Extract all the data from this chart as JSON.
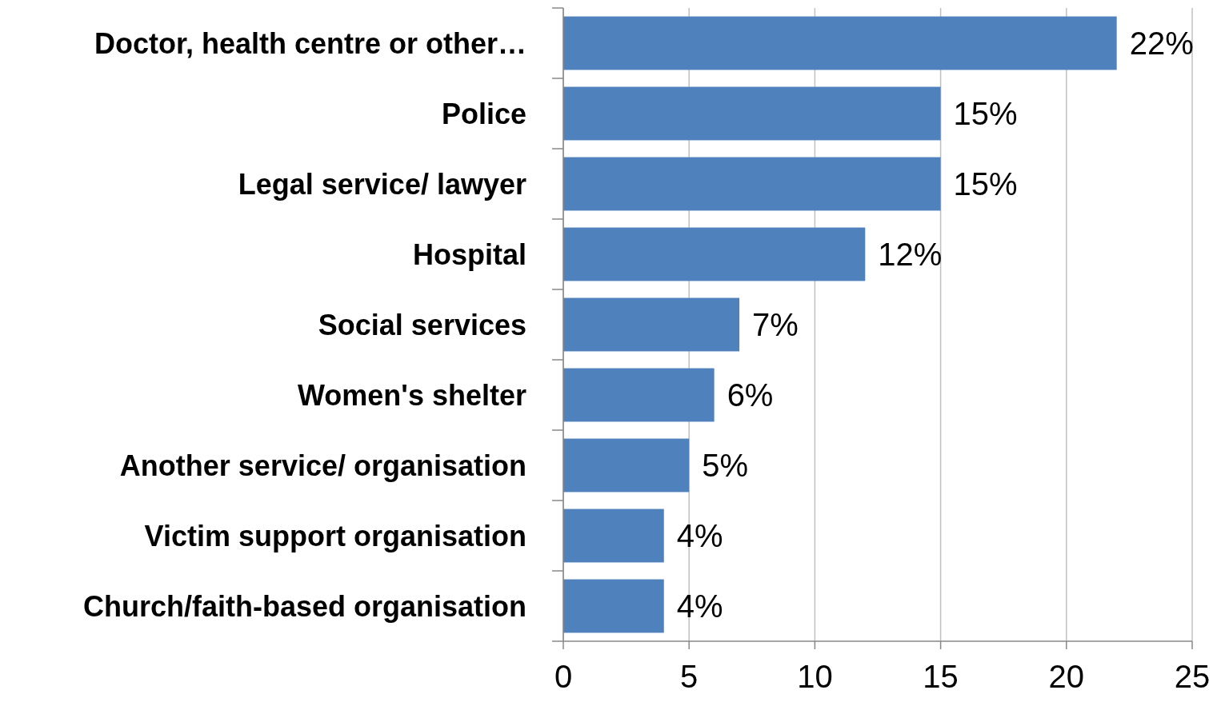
{
  "chart_data": {
    "type": "bar",
    "orientation": "horizontal",
    "categories": [
      "Doctor, health centre or other…",
      "Police",
      "Legal service/ lawyer",
      "Hospital",
      "Social services",
      "Women's shelter",
      "Another service/ organisation",
      "Victim support organisation",
      "Church/faith-based organisation"
    ],
    "values": [
      22,
      15,
      15,
      12,
      7,
      6,
      5,
      4,
      4
    ],
    "value_labels": [
      "22%",
      "15%",
      "15%",
      "12%",
      "7%",
      "6%",
      "5%",
      "4%",
      "4%"
    ],
    "color": "#4f81bd",
    "xlim": [
      0,
      25
    ],
    "xticks": [
      0,
      5,
      10,
      15,
      20,
      25
    ],
    "grid": "x"
  }
}
